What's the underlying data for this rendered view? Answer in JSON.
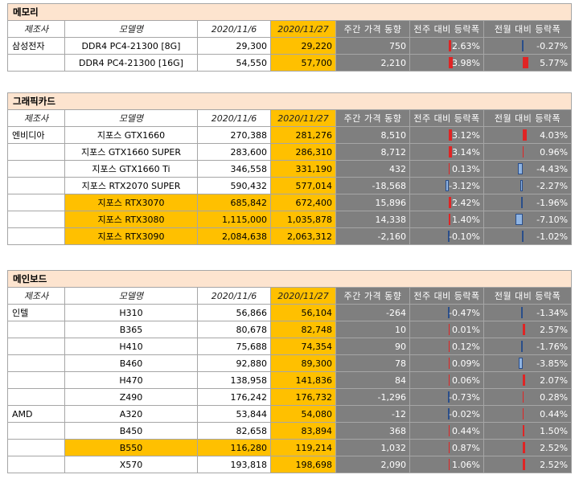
{
  "columns": {
    "maker": "제조사",
    "model": "모델명",
    "date1": "2020/11/6",
    "date2": "2020/11/27",
    "weekly_change": "주간 가격 동향",
    "wow_pct": "전주 대비 등락폭",
    "mom_pct": "전월 대비 등락폭"
  },
  "sections": [
    {
      "title": "메모리",
      "rows": [
        {
          "maker": "삼성전자",
          "model": "DDR4 PC4-21300 [8G]",
          "p1": "29,300",
          "p2": "29,220",
          "wk": "750",
          "wow": "2.63%",
          "wow_v": 2.63,
          "mom": "-0.27%",
          "mom_v": -0.27,
          "hl": false
        },
        {
          "maker": "",
          "model": "DDR4 PC4-21300 [16G]",
          "p1": "54,550",
          "p2": "57,700",
          "wk": "2,210",
          "wow": "3.98%",
          "wow_v": 3.98,
          "mom": "5.77%",
          "mom_v": 5.77,
          "hl": false
        }
      ]
    },
    {
      "title": "그래픽카드",
      "rows": [
        {
          "maker": "엔비디아",
          "model": "지포스 GTX1660",
          "p1": "270,388",
          "p2": "281,276",
          "wk": "8,510",
          "wow": "3.12%",
          "wow_v": 3.12,
          "mom": "4.03%",
          "mom_v": 4.03,
          "hl": false
        },
        {
          "maker": "",
          "model": "지포스 GTX1660 SUPER",
          "p1": "283,600",
          "p2": "286,310",
          "wk": "8,712",
          "wow": "3.14%",
          "wow_v": 3.14,
          "mom": "0.96%",
          "mom_v": 0.96,
          "hl": false
        },
        {
          "maker": "",
          "model": "지포스 GTX1660 Ti",
          "p1": "346,558",
          "p2": "331,190",
          "wk": "432",
          "wow": "0.13%",
          "wow_v": 0.13,
          "mom": "-4.43%",
          "mom_v": -4.43,
          "hl": false
        },
        {
          "maker": "",
          "model": "지포스 RTX2070 SUPER",
          "p1": "590,432",
          "p2": "577,014",
          "wk": "-18,568",
          "wow": "-3.12%",
          "wow_v": -3.12,
          "mom": "-2.27%",
          "mom_v": -2.27,
          "hl": false
        },
        {
          "maker": "",
          "model": "지포스 RTX3070",
          "p1": "685,842",
          "p2": "672,400",
          "wk": "15,896",
          "wow": "2.42%",
          "wow_v": 2.42,
          "mom": "-1.96%",
          "mom_v": -1.96,
          "hl": true
        },
        {
          "maker": "",
          "model": "지포스 RTX3080",
          "p1": "1,115,000",
          "p2": "1,035,878",
          "wk": "14,338",
          "wow": "1.40%",
          "wow_v": 1.4,
          "mom": "-7.10%",
          "mom_v": -7.1,
          "hl": true
        },
        {
          "maker": "",
          "model": "지포스 RTX3090",
          "p1": "2,084,638",
          "p2": "2,063,312",
          "wk": "-2,160",
          "wow": "-0.10%",
          "wow_v": -0.1,
          "mom": "-1.02%",
          "mom_v": -1.02,
          "hl": true
        }
      ]
    },
    {
      "title": "메인보드",
      "rows": [
        {
          "maker": "인텔",
          "model": "H310",
          "p1": "56,866",
          "p2": "56,104",
          "wk": "-264",
          "wow": "-0.47%",
          "wow_v": -0.47,
          "mom": "-1.34%",
          "mom_v": -1.34,
          "hl": false
        },
        {
          "maker": "",
          "model": "B365",
          "p1": "80,678",
          "p2": "82,748",
          "wk": "10",
          "wow": "0.01%",
          "wow_v": 0.01,
          "mom": "2.57%",
          "mom_v": 2.57,
          "hl": false
        },
        {
          "maker": "",
          "model": "H410",
          "p1": "75,688",
          "p2": "74,354",
          "wk": "90",
          "wow": "0.12%",
          "wow_v": 0.12,
          "mom": "-1.76%",
          "mom_v": -1.76,
          "hl": false
        },
        {
          "maker": "",
          "model": "B460",
          "p1": "92,880",
          "p2": "89,300",
          "wk": "78",
          "wow": "0.09%",
          "wow_v": 0.09,
          "mom": "-3.85%",
          "mom_v": -3.85,
          "hl": false
        },
        {
          "maker": "",
          "model": "H470",
          "p1": "138,958",
          "p2": "141,836",
          "wk": "84",
          "wow": "0.06%",
          "wow_v": 0.06,
          "mom": "2.07%",
          "mom_v": 2.07,
          "hl": false
        },
        {
          "maker": "",
          "model": "Z490",
          "p1": "176,242",
          "p2": "176,732",
          "wk": "-1,296",
          "wow": "-0.73%",
          "wow_v": -0.73,
          "mom": "0.28%",
          "mom_v": 0.28,
          "hl": false
        },
        {
          "maker": "AMD",
          "model": "A320",
          "p1": "53,844",
          "p2": "54,080",
          "wk": "-12",
          "wow": "-0.02%",
          "wow_v": -0.02,
          "mom": "0.44%",
          "mom_v": 0.44,
          "hl": false
        },
        {
          "maker": "",
          "model": "B450",
          "p1": "82,658",
          "p2": "83,894",
          "wk": "368",
          "wow": "0.44%",
          "wow_v": 0.44,
          "mom": "1.50%",
          "mom_v": 1.5,
          "hl": false
        },
        {
          "maker": "",
          "model": "B550",
          "p1": "116,280",
          "p2": "119,214",
          "wk": "1,032",
          "wow": "0.87%",
          "wow_v": 0.87,
          "mom": "2.52%",
          "mom_v": 2.52,
          "hl": true
        },
        {
          "maker": "",
          "model": "X570",
          "p1": "193,818",
          "p2": "198,698",
          "wk": "2,090",
          "wow": "1.06%",
          "wow_v": 1.06,
          "mom": "2.52%",
          "mom_v": 2.52,
          "hl": false
        }
      ]
    }
  ],
  "colors": {
    "section_title_bg": "#fde4cf",
    "highlight": "#ffc000",
    "dark_cell": "#7f7f7f",
    "bar_positive": "#e02424",
    "bar_negative": "#8fb4e3"
  }
}
